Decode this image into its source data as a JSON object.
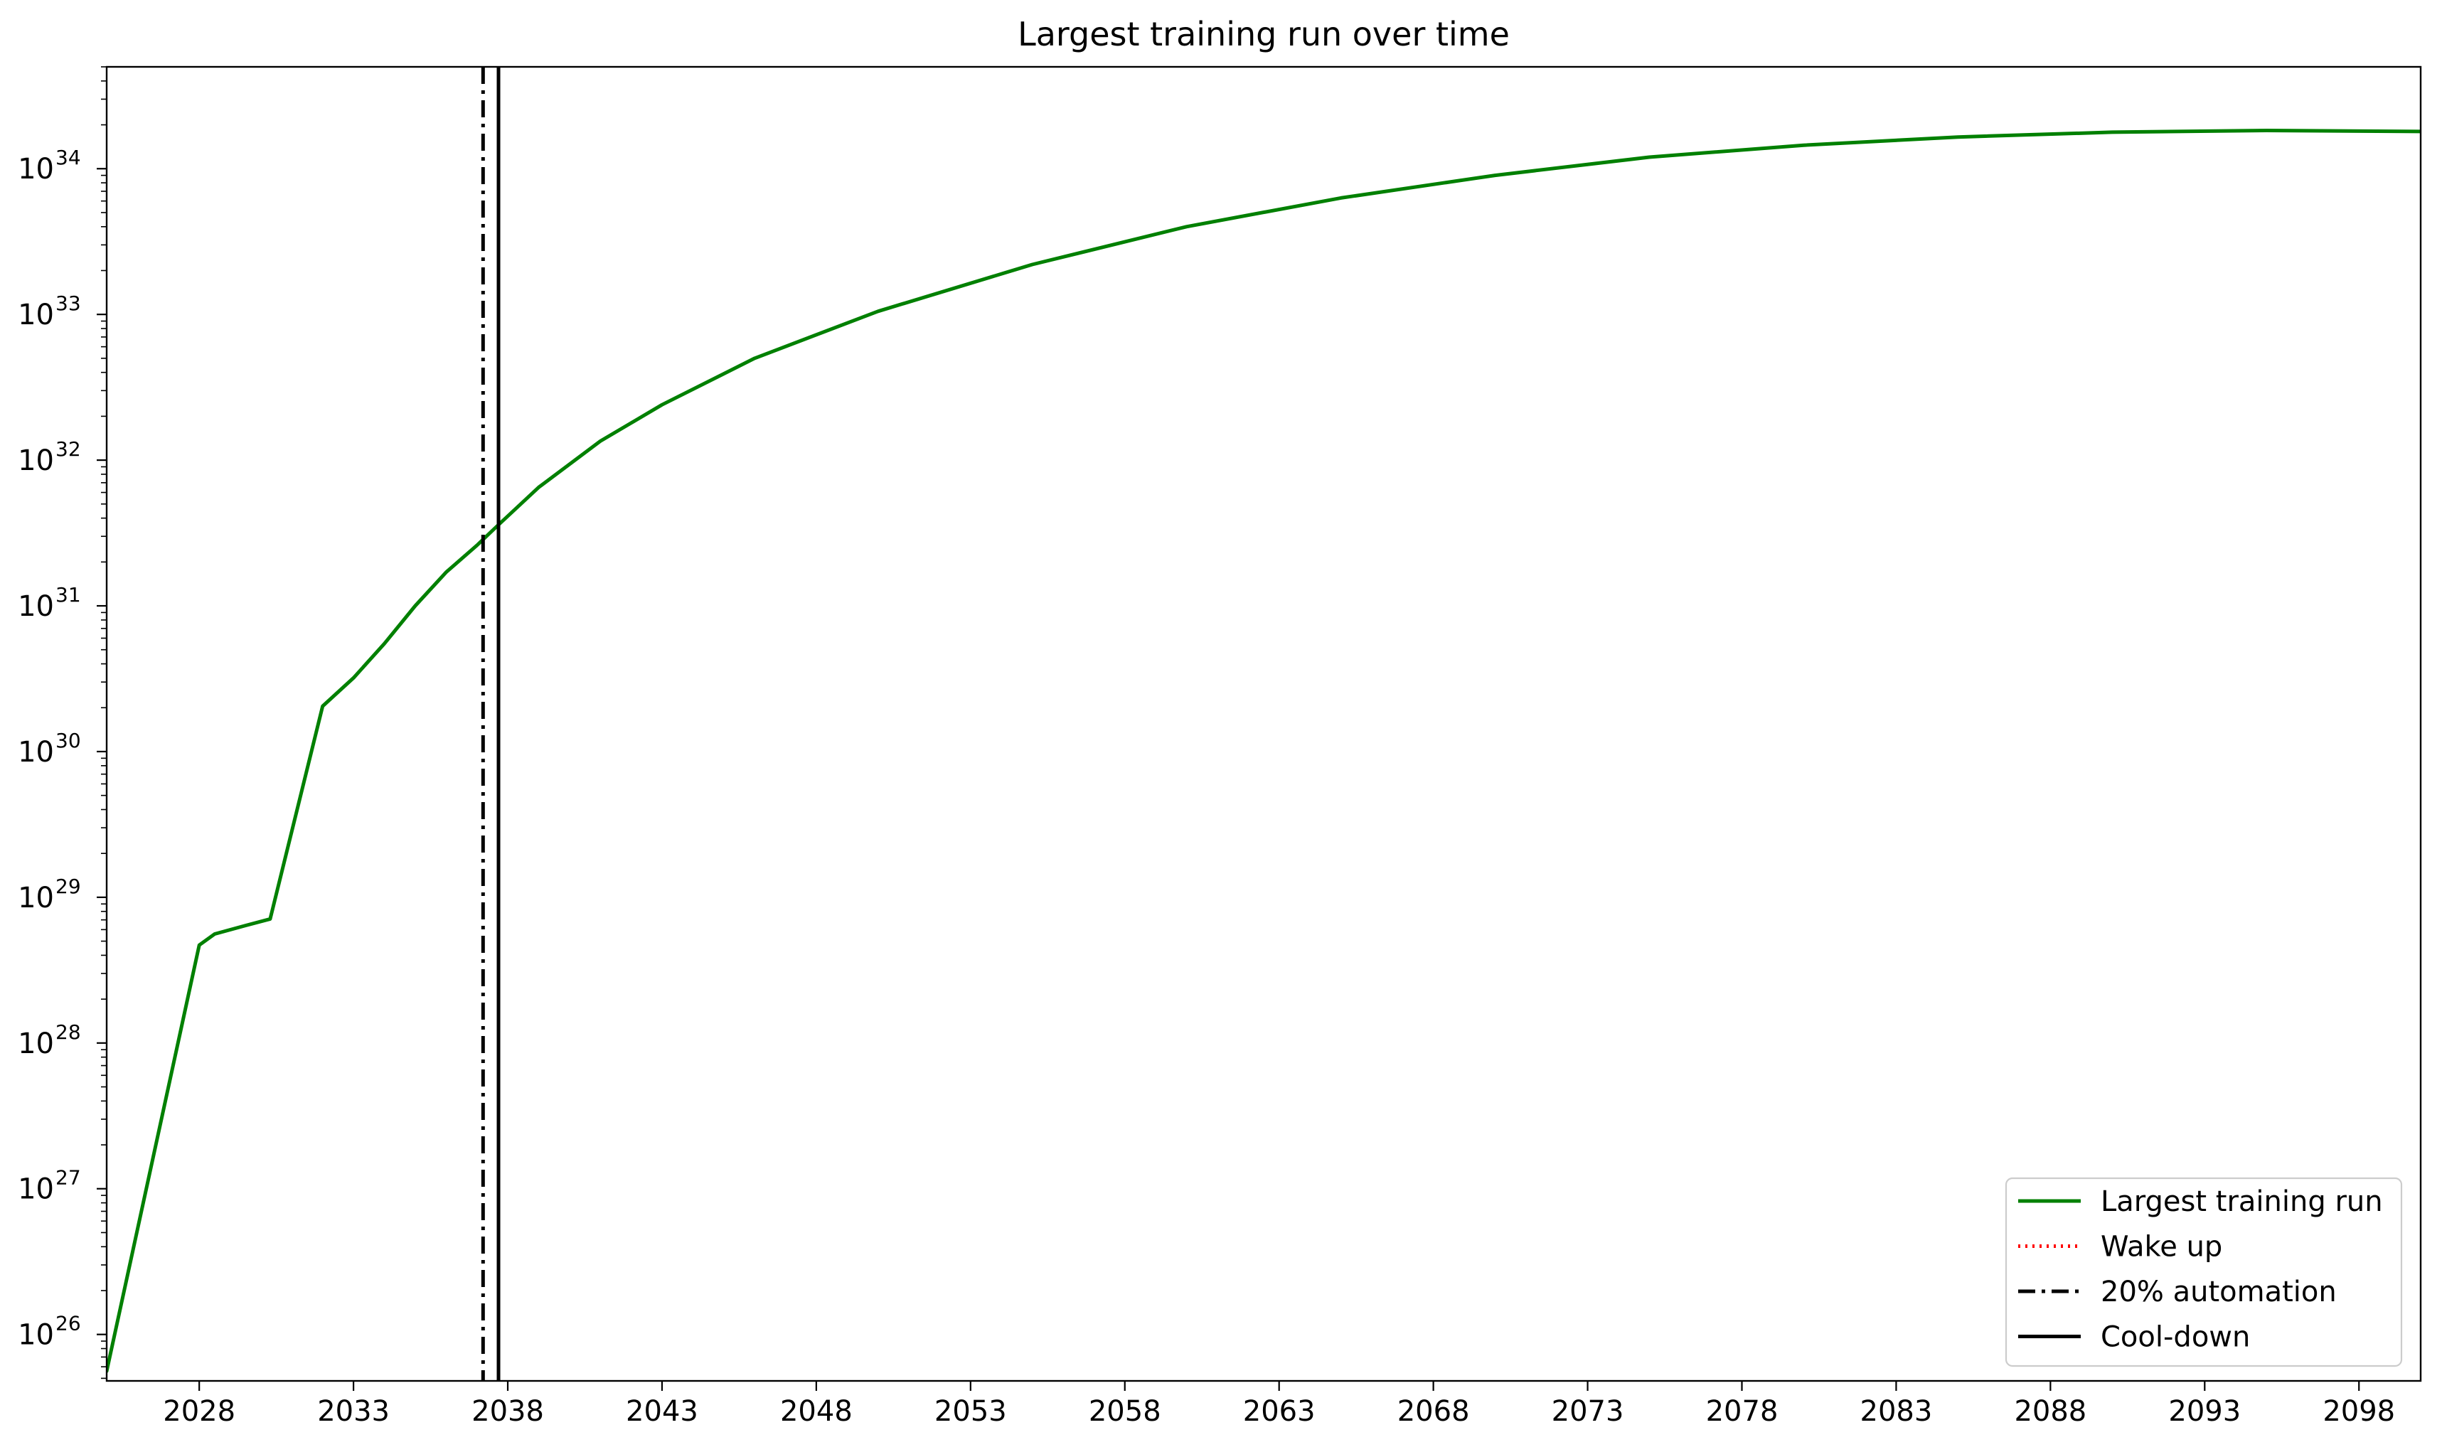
{
  "chart_data": {
    "type": "line",
    "title": "Largest training run over time",
    "xlabel": "",
    "ylabel": "",
    "x_scale": "linear",
    "y_scale": "log",
    "xlim": [
      2025.0,
      2100.0
    ],
    "ylim": [
      4.8e+25,
      5e+34
    ],
    "x_ticks": [
      2028,
      2033,
      2038,
      2043,
      2048,
      2053,
      2058,
      2063,
      2068,
      2073,
      2078,
      2083,
      2088,
      2093,
      2098
    ],
    "x_tick_labels": [
      "2028",
      "2033",
      "2038",
      "2043",
      "2048",
      "2053",
      "2058",
      "2063",
      "2068",
      "2073",
      "2078",
      "2083",
      "2088",
      "2093",
      "2098"
    ],
    "y_ticks": [
      1e+26,
      1e+27,
      1e+28,
      1e+29,
      1e+30,
      1e+31,
      1e+32,
      1e+33,
      1e+34
    ],
    "y_tick_labels": [
      {
        "base": "10",
        "exp": "26"
      },
      {
        "base": "10",
        "exp": "27"
      },
      {
        "base": "10",
        "exp": "28"
      },
      {
        "base": "10",
        "exp": "29"
      },
      {
        "base": "10",
        "exp": "30"
      },
      {
        "base": "10",
        "exp": "31"
      },
      {
        "base": "10",
        "exp": "32"
      },
      {
        "base": "10",
        "exp": "33"
      },
      {
        "base": "10",
        "exp": "34"
      }
    ],
    "grid": false,
    "legend_position": "lower-right",
    "series": [
      {
        "name": "Largest training run",
        "style": "solid",
        "color": "#008000",
        "x": [
          2025.0,
          2028.0,
          2028.5,
          2029.5,
          2030.3,
          2032.0,
          2033.0,
          2034.0,
          2035.0,
          2036.0,
          2037.0,
          2037.7,
          2039.0,
          2041.0,
          2043.0,
          2046.0,
          2050.0,
          2055.0,
          2060.0,
          2065.0,
          2070.0,
          2075.0,
          2080.0,
          2085.0,
          2090.0,
          2095.0,
          2100.0
        ],
        "y": [
          5.6e+25,
          4.7e+28,
          5.6e+28,
          6.4e+28,
          7.1e+28,
          2.05e+30,
          3.2e+30,
          5.5e+30,
          1e+31,
          1.7e+31,
          2.6e+31,
          3.6e+31,
          6.5e+31,
          1.35e+32,
          2.4e+32,
          5e+32,
          1.05e+33,
          2.2e+33,
          4e+33,
          6.3e+33,
          9e+33,
          1.2e+34,
          1.45e+34,
          1.65e+34,
          1.78e+34,
          1.83e+34,
          1.8e+34
        ]
      }
    ],
    "vertical_lines": [
      {
        "name": "Wake up",
        "x": null,
        "style": "dotted",
        "color": "#ff0000"
      },
      {
        "name": "20% automation",
        "x": 2037.2,
        "style": "dashdot",
        "color": "#000000"
      },
      {
        "name": "Cool-down",
        "x": 2037.7,
        "style": "solid",
        "color": "#000000"
      }
    ]
  }
}
